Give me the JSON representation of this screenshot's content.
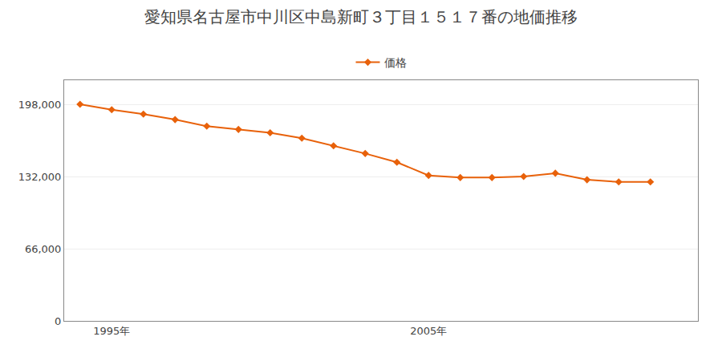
{
  "chart_data": {
    "type": "line",
    "title": "愛知県名古屋市中川区中島新町３丁目１５１７番の地価推移",
    "x": [
      1994,
      1995,
      1996,
      1997,
      1998,
      1999,
      2000,
      2001,
      2002,
      2003,
      2004,
      2005,
      2006,
      2007,
      2008,
      2009,
      2010,
      2011,
      2012
    ],
    "series": [
      {
        "name": "価格",
        "color": "#e8610a",
        "marker": "diamond",
        "values": [
          198000,
          193000,
          189000,
          184000,
          178000,
          175000,
          172000,
          167000,
          160000,
          153000,
          145000,
          133000,
          131000,
          131000,
          132000,
          135000,
          129000,
          127000,
          127000
        ]
      }
    ],
    "xlim": [
      1993.5,
      2013.5
    ],
    "xticks": [
      {
        "value": 1995,
        "label": "1995年"
      },
      {
        "value": 2005,
        "label": "2005年"
      }
    ],
    "ylim": [
      0,
      220000
    ],
    "yticks": [
      0,
      {
        "value": 66000,
        "label": "66,000"
      },
      {
        "value": 132000,
        "label": "132,000"
      },
      {
        "value": 198000,
        "label": "198,000"
      }
    ],
    "grid": "y",
    "legend": "top"
  }
}
